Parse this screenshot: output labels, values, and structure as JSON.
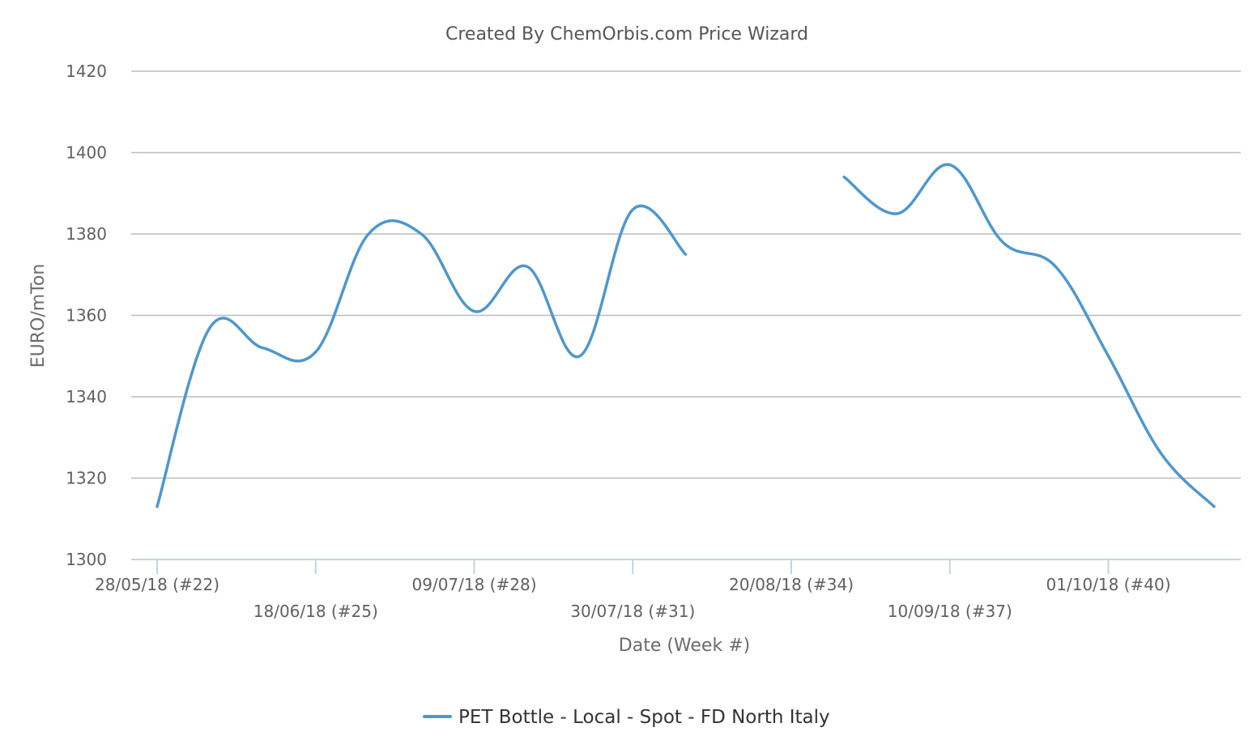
{
  "chart_data": {
    "type": "line",
    "title": "Created By ChemOrbis.com Price Wizard",
    "xlabel": "Date (Week #)",
    "ylabel": "EURO/mTon",
    "ylim": [
      1300,
      1420
    ],
    "yticks": [
      1300,
      1320,
      1340,
      1360,
      1380,
      1400,
      1420
    ],
    "xticks": [
      {
        "week": 22,
        "label": "28/05/18 (#22)"
      },
      {
        "week": 25,
        "label": "18/06/18 (#25)"
      },
      {
        "week": 28,
        "label": "09/07/18 (#28)"
      },
      {
        "week": 31,
        "label": "30/07/18 (#31)"
      },
      {
        "week": 34,
        "label": "20/08/18 (#34)"
      },
      {
        "week": 37,
        "label": "10/09/18 (#37)"
      },
      {
        "week": 40,
        "label": "01/10/18 (#40)"
      }
    ],
    "grid": true,
    "legend": "bottom-center",
    "series": [
      {
        "name": "PET Bottle - Local - Spot - FD North Italy",
        "color": "#4f97cc",
        "points": [
          {
            "week": 22,
            "value": 1313
          },
          {
            "week": 23,
            "value": 1357
          },
          {
            "week": 24,
            "value": 1352
          },
          {
            "week": 25,
            "value": 1351
          },
          {
            "week": 26,
            "value": 1380
          },
          {
            "week": 27,
            "value": 1380
          },
          {
            "week": 28,
            "value": 1361
          },
          {
            "week": 29,
            "value": 1372
          },
          {
            "week": 30,
            "value": 1350
          },
          {
            "week": 31,
            "value": 1386
          },
          {
            "week": 32,
            "value": 1375
          },
          {
            "week": 33,
            "value": null
          },
          {
            "week": 34,
            "value": null
          },
          {
            "week": 35,
            "value": 1394
          },
          {
            "week": 36,
            "value": 1385
          },
          {
            "week": 37,
            "value": 1397
          },
          {
            "week": 38,
            "value": 1378
          },
          {
            "week": 39,
            "value": 1372
          },
          {
            "week": 40,
            "value": 1350
          },
          {
            "week": 41,
            "value": 1326
          },
          {
            "week": 42,
            "value": 1313
          }
        ]
      }
    ]
  }
}
